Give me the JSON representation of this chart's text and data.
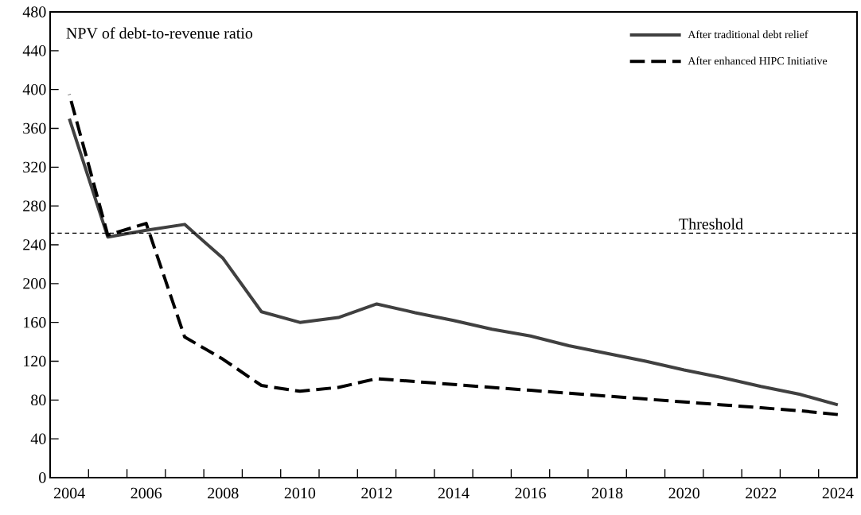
{
  "chart_data": {
    "type": "line",
    "title": "NPV of debt-to-revenue ratio",
    "categories": [
      "2004",
      null,
      "2006",
      null,
      "2008",
      null,
      "2010",
      null,
      "2012",
      null,
      "2014",
      null,
      "2016",
      null,
      "2018",
      null,
      "2020",
      null,
      "2022",
      null,
      "2024"
    ],
    "series": [
      {
        "name": "After traditional debt relief",
        "color": "#404040",
        "line_style": "solid",
        "values": [
          370,
          248,
          255,
          261,
          226,
          171,
          160,
          165,
          179,
          170,
          162,
          153,
          146,
          136,
          128,
          120,
          111,
          103,
          94,
          86,
          75
        ]
      },
      {
        "name": "After enhanced HIPC Initiative",
        "color": "#000000",
        "line_style": "dashed",
        "values": [
          395,
          250,
          262,
          145,
          122,
          95,
          89,
          93,
          102,
          99,
          96,
          93,
          90,
          87,
          84,
          81,
          78,
          75,
          72,
          69,
          65
        ]
      }
    ],
    "ylim": [
      0,
      480
    ],
    "yticks": [
      0,
      40,
      80,
      120,
      160,
      200,
      240,
      280,
      320,
      360,
      400,
      440,
      480
    ],
    "ref_lines": [
      {
        "axis": "y",
        "value": 252,
        "label": "Threshold",
        "color": "#000000",
        "line_style": "dashed"
      }
    ],
    "grid": false,
    "legend": "top right",
    "marker": "none"
  }
}
